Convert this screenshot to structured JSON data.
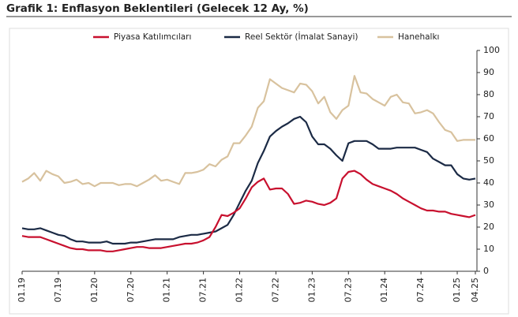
{
  "chart_data": {
    "type": "line",
    "title": "Grafik 1: Enflasyon Beklentileri (Gelecek 12 Ay, %)",
    "categories": [
      "01.19",
      null,
      null,
      null,
      null,
      null,
      "07.19",
      null,
      null,
      null,
      null,
      null,
      "01.20",
      null,
      null,
      null,
      null,
      null,
      "07.20",
      null,
      null,
      null,
      null,
      null,
      "01.21",
      null,
      null,
      null,
      null,
      null,
      "07.21",
      null,
      null,
      null,
      null,
      null,
      "01.22",
      null,
      null,
      null,
      null,
      null,
      "07.22",
      null,
      null,
      null,
      null,
      null,
      "01.23",
      null,
      null,
      null,
      null,
      null,
      "07.23",
      null,
      null,
      null,
      null,
      null,
      "01.24",
      null,
      null,
      null,
      null,
      null,
      "07.24",
      null,
      null,
      null,
      null,
      null,
      "01.25",
      null,
      null,
      "04.25"
    ],
    "series": [
      {
        "name": "Piyasa Katılımcıları",
        "color": "#c8102e",
        "values": [
          16,
          15.5,
          15.5,
          15.5,
          14.5,
          13.5,
          12.5,
          11.5,
          10.5,
          10,
          10,
          9.5,
          9.5,
          9.5,
          9,
          9,
          9.5,
          10,
          10.5,
          11,
          11,
          10.5,
          10.5,
          10.5,
          11,
          11.5,
          12,
          12.5,
          12.5,
          13,
          14,
          15.5,
          20,
          25.5,
          25,
          26.5,
          28.5,
          33,
          38,
          40.5,
          42,
          37,
          37.5,
          37.5,
          35,
          30.5,
          31,
          32,
          31.5,
          30.5,
          30,
          31,
          33,
          42,
          45,
          45.5,
          44,
          41.5,
          39.5,
          38.5,
          37.5,
          36.5,
          35,
          33,
          31.5,
          30,
          28.5,
          27.5,
          27.5,
          27,
          27,
          26,
          25.5,
          25,
          24.5,
          25.5
        ]
      },
      {
        "name": "Reel Sektör (İmalat Sanayi)",
        "color": "#1b2a45",
        "values": [
          19.5,
          19,
          19,
          19.5,
          18.5,
          17.5,
          16.5,
          16,
          14.5,
          13.5,
          13.5,
          13,
          13,
          13,
          13.5,
          12.5,
          12.5,
          12.5,
          13,
          13,
          13.5,
          14,
          14.5,
          14.5,
          14.5,
          14.5,
          15.5,
          16,
          16.5,
          16.5,
          17,
          17.5,
          18,
          19.5,
          21,
          25.5,
          31,
          36.5,
          41,
          49,
          54.5,
          61,
          63.5,
          65.5,
          67,
          69,
          70,
          67.5,
          61,
          57.5,
          57.5,
          55.5,
          52.5,
          50,
          58,
          59,
          59,
          59,
          57.5,
          55.5,
          55.5,
          55.5,
          56,
          56,
          56,
          56,
          55,
          54,
          51,
          49.5,
          48,
          48,
          44,
          42,
          41.5,
          42
        ]
      },
      {
        "name": "Hanehalkı",
        "color": "#d8c29e",
        "values": [
          40.5,
          42,
          44.5,
          41,
          45.5,
          44,
          43,
          40,
          40.5,
          41.5,
          39.5,
          40,
          38.5,
          40,
          40,
          40,
          39,
          39.5,
          39.5,
          38.5,
          40,
          41.5,
          43.5,
          41,
          41.5,
          40.5,
          39.5,
          44.5,
          44.5,
          45,
          46,
          48.5,
          47.5,
          50.5,
          52,
          58,
          58,
          61.5,
          65.5,
          74,
          77,
          87,
          85,
          83,
          82,
          81,
          85,
          84.5,
          81.5,
          76,
          79,
          72,
          69,
          73,
          75,
          88.5,
          81,
          80.5,
          78,
          76.5,
          75,
          79,
          80,
          76.5,
          76,
          71.5,
          72,
          73,
          71.5,
          67.5,
          64,
          63,
          59,
          59.5,
          59.5,
          59.5
        ]
      }
    ],
    "ylim": [
      0,
      100
    ],
    "yticks": [
      0,
      10,
      20,
      30,
      40,
      50,
      60,
      70,
      80,
      90,
      100
    ],
    "y_axis_side": "right",
    "grid": false,
    "legend": "top"
  }
}
